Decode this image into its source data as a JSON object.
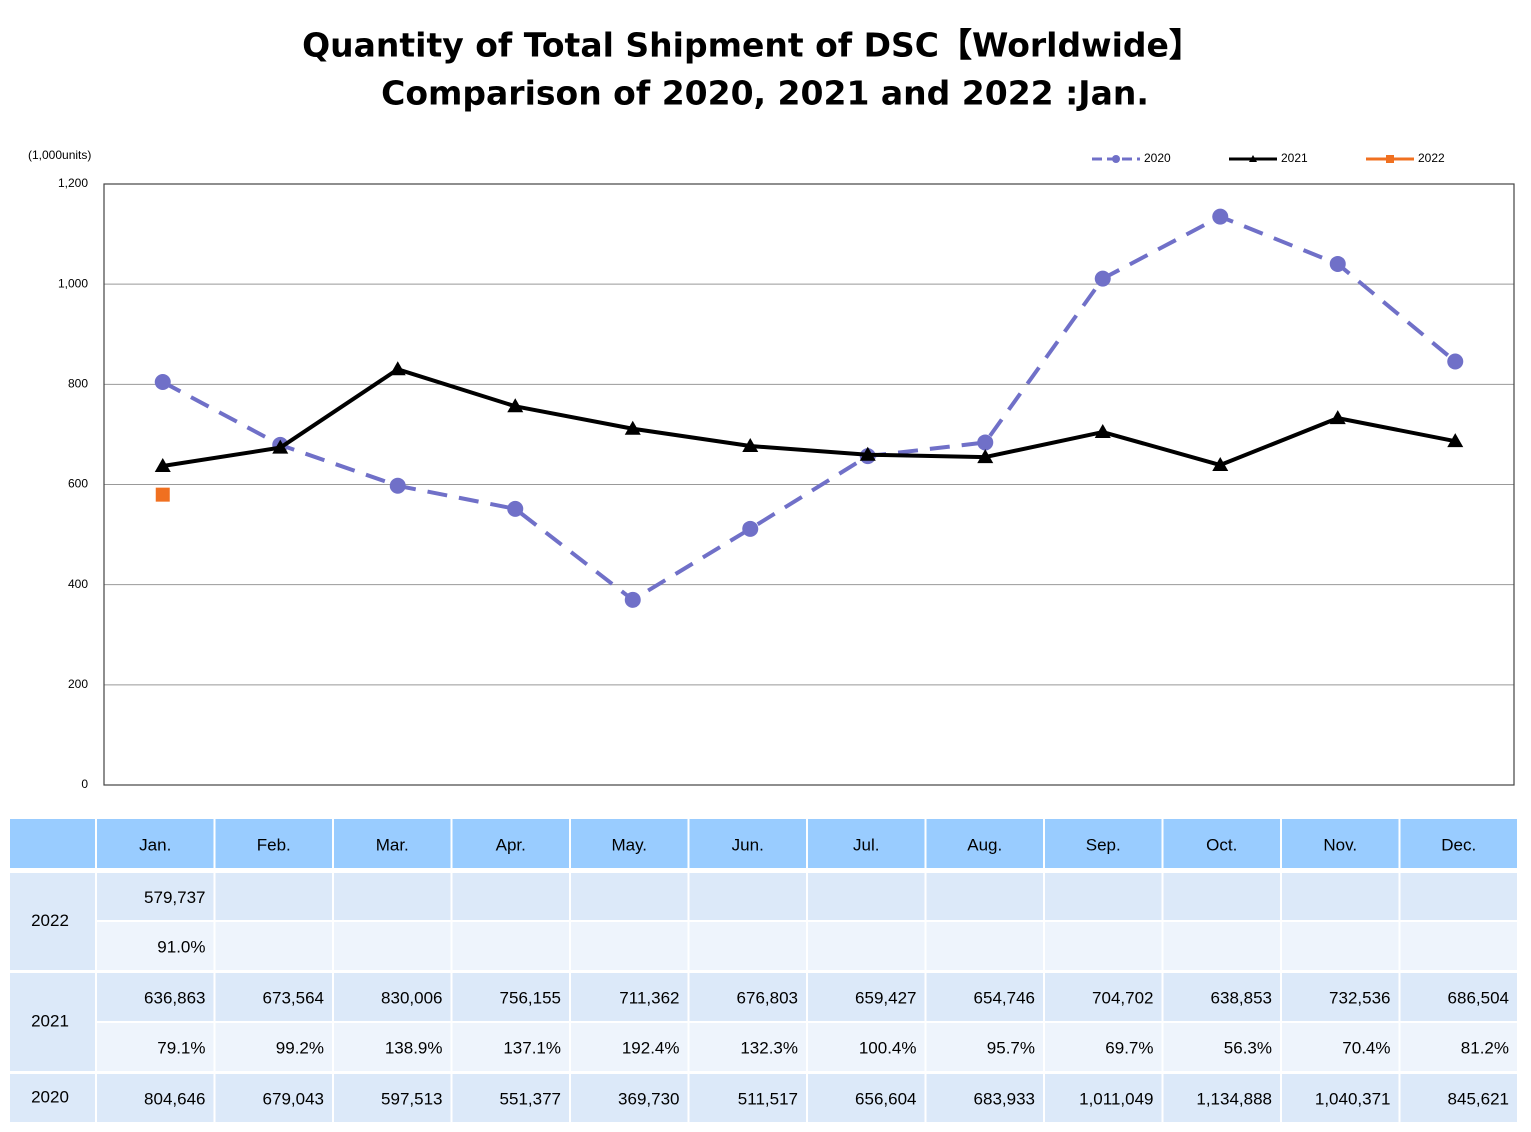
{
  "chart_data": {
    "type": "line",
    "title": "Quantity of Total Shipment of DSC【Worldwide】",
    "subtitle": "Comparison of 2020, 2021 and 2022 :Jan.",
    "y_label": "(1,000units)",
    "categories": [
      "Jan.",
      "Feb.",
      "Mar.",
      "Apr.",
      "May.",
      "Jun.",
      "Jul.",
      "Aug.",
      "Sep.",
      "Oct.",
      "Nov.",
      "Dec."
    ],
    "series": [
      {
        "name": "2020",
        "color": "#7070c8",
        "values": [
          804.646,
          679.043,
          597.513,
          551.377,
          369.73,
          511.517,
          656.604,
          683.933,
          1011.049,
          1134.888,
          1040.371,
          845.621
        ]
      },
      {
        "name": "2021",
        "color": "#000000",
        "values": [
          636.863,
          673.564,
          830.006,
          756.155,
          711.362,
          676.803,
          659.427,
          654.746,
          704.702,
          638.853,
          732.536,
          686.504
        ]
      },
      {
        "name": "2022",
        "color": "#f07020",
        "values": [
          579.737,
          null,
          null,
          null,
          null,
          null,
          null,
          null,
          null,
          null,
          null,
          null
        ]
      }
    ],
    "ylim": [
      0,
      1200
    ],
    "yticks": [
      0,
      200,
      400,
      600,
      800,
      {
        "value": 1000,
        "label": "1,000"
      },
      {
        "value": 1200,
        "label": "1,200"
      }
    ],
    "grid": true,
    "legend": "top-right"
  },
  "table": {
    "rows": [
      {
        "year": "2022",
        "quantity": [
          "579,737"
        ],
        "ratio": [
          "91.0%"
        ]
      },
      {
        "year": "2021",
        "quantity": [
          "636,863",
          "673,564",
          "830,006",
          "756,155",
          "711,362",
          "676,803",
          "659,427",
          "654,746",
          "704,702",
          "638,853",
          "732,536",
          "686,504"
        ],
        "ratio": [
          "79.1%",
          "99.2%",
          "138.9%",
          "137.1%",
          "192.4%",
          "132.3%",
          "100.4%",
          "95.7%",
          "69.7%",
          "56.3%",
          "70.4%",
          "81.2%"
        ]
      },
      {
        "year": "2020",
        "quantity": [
          "804,646",
          "679,043",
          "597,513",
          "551,377",
          "369,730",
          "511,517",
          "656,604",
          "683,933",
          "1,011,049",
          "1,134,888",
          "1,040,371",
          "845,621"
        ]
      }
    ]
  }
}
